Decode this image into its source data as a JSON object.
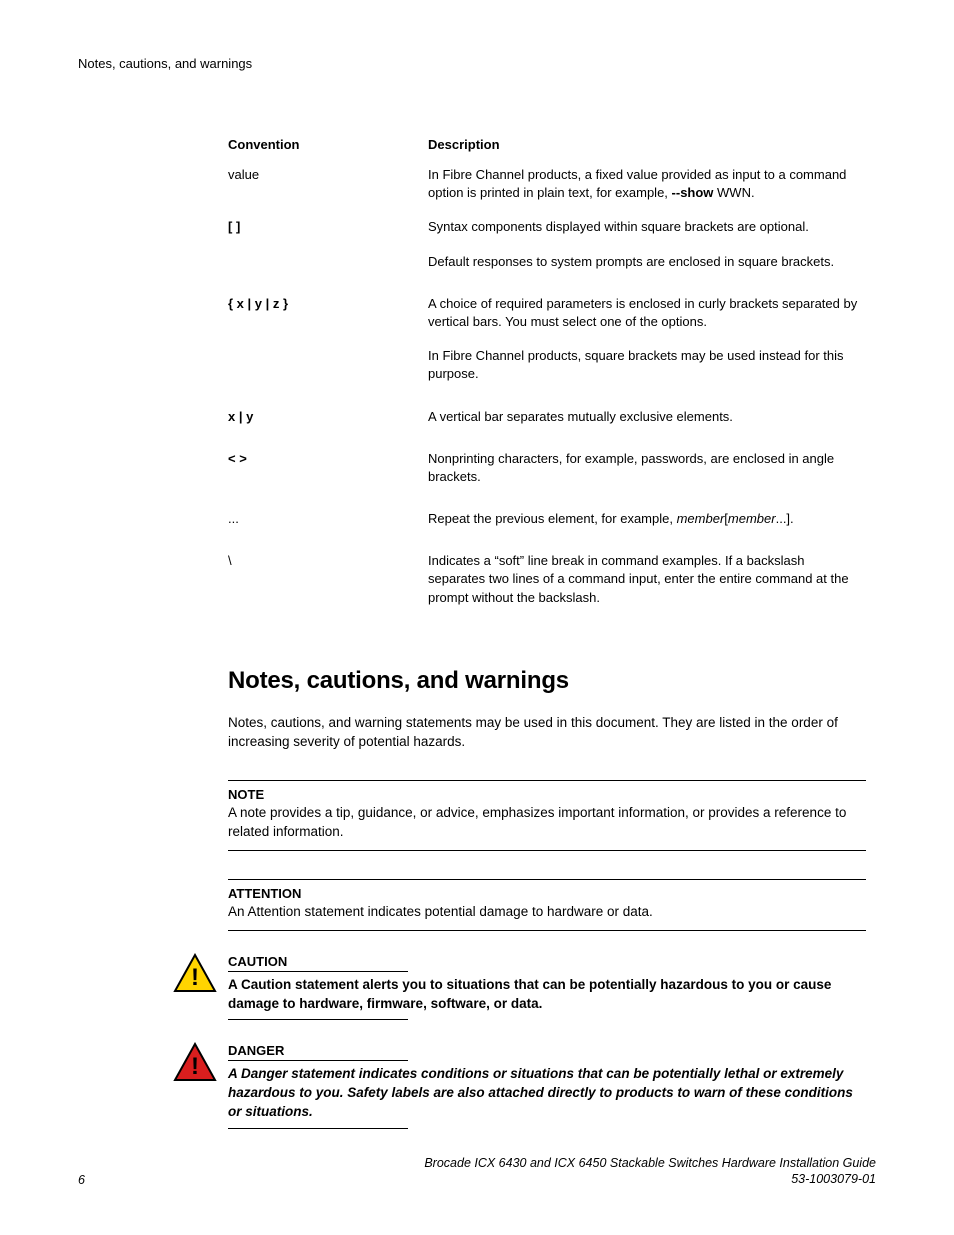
{
  "runningHeader": "Notes, cautions, and warnings",
  "table": {
    "headers": {
      "col1": "Convention",
      "col2": "Description"
    },
    "rows": [
      {
        "conv": "value",
        "desc_parts": [
          "In Fibre Channel products, a fixed value provided as input to a command option is printed in plain text, for example, ",
          {
            "bold": "--show"
          },
          " WWN."
        ]
      },
      {
        "conv": "[ ]",
        "conv_bold": true,
        "desc": "Syntax components displayed within square brackets are optional."
      },
      {
        "conv": "",
        "desc": "Default responses to system prompts are enclosed in square brackets."
      },
      {
        "conv": "{ x | y | z }",
        "conv_bold": true,
        "desc": "A choice of required parameters is enclosed in curly brackets separated by vertical bars. You must select one of the options.",
        "gap": true
      },
      {
        "conv": "",
        "desc": "In Fibre Channel products, square brackets may be used instead for this purpose."
      },
      {
        "conv": "x | y",
        "conv_bold": true,
        "desc": "A vertical bar separates mutually exclusive elements.",
        "gap": true
      },
      {
        "conv": "< >",
        "conv_bold": true,
        "desc": "Nonprinting characters, for example, passwords, are enclosed in angle brackets.",
        "gap": true
      },
      {
        "conv": "...",
        "desc_parts": [
          "Repeat the previous element, for example, ",
          {
            "italic": "member"
          },
          "[",
          {
            "italic": "member"
          },
          "...]."
        ],
        "gap": true
      },
      {
        "conv": "\\",
        "desc": "Indicates a “soft” line break in command examples. If a backslash separates two lines of a command input, enter the entire command at the prompt without the backslash.",
        "gap": true
      }
    ]
  },
  "heading": "Notes, cautions, and warnings",
  "intro": "Notes, cautions, and warning statements may be used in this document. They are listed in the order of increasing severity of potential hazards.",
  "note": {
    "title": "NOTE",
    "text": "A note provides a tip, guidance, or advice, emphasizes important information, or provides a reference to related information."
  },
  "attention": {
    "title": "ATTENTION",
    "text": "An Attention statement indicates potential damage to hardware or data."
  },
  "caution": {
    "title": "CAUTION",
    "text": "A Caution statement alerts you to situations that can be potentially hazardous to you or cause damage to hardware, firmware, software, or data.",
    "icon_fill": "#ffd400",
    "icon_stroke": "#000000"
  },
  "danger": {
    "title": "DANGER",
    "text": "A Danger statement indicates conditions or situations that can be potentially lethal or extremely hazardous to you. Safety labels are also attached directly to products to warn of these conditions or situations.",
    "icon_fill": "#d91e1e",
    "icon_stroke": "#000000"
  },
  "footer": {
    "page": "6",
    "title": "Brocade ICX 6430 and ICX 6450 Stackable Switches Hardware Installation Guide",
    "docnum": "53-1003079-01"
  }
}
